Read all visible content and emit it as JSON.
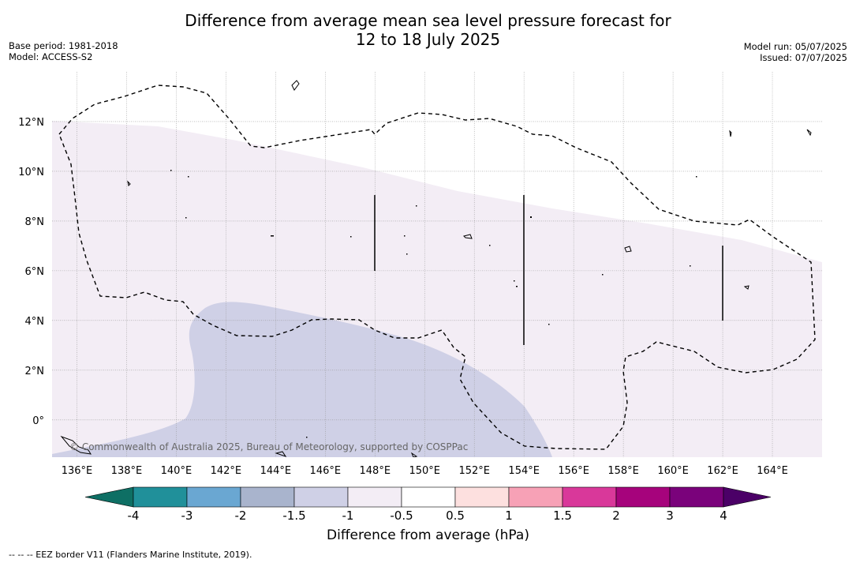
{
  "title_line1": "Difference from average mean sea level pressure forecast for",
  "title_line2": "12 to 18 July 2025",
  "base_period": "Base period: 1981-2018",
  "model": "Model: ACCESS-S2",
  "model_run": "Model run: 05/07/2025",
  "issued": "Issued: 07/07/2025",
  "copyright": "© Commonwealth of Australia 2025, Bureau of Meteorology, supported by COSPPac",
  "footnote": "--  --  -- EEZ border V11 (Flanders Marine Institute, 2019).",
  "colorbar": {
    "title": "Difference from average (hPa)",
    "tick_labels": [
      "-4",
      "-3",
      "-2",
      "-1.5",
      "-1",
      "-0.5",
      "0.5",
      "1",
      "1.5",
      "2",
      "3",
      "4"
    ],
    "colors": [
      "#0e6f64",
      "#20909a",
      "#6aa7d2",
      "#a9b4cd",
      "#cfd0e6",
      "#f3edf5",
      "#ffffff",
      "#fde0df",
      "#f7a1b6",
      "#d9389a",
      "#a6037c",
      "#7a027b",
      "#4b0067"
    ]
  },
  "map": {
    "lon_ticks": [
      "136°E",
      "138°E",
      "140°E",
      "142°E",
      "144°E",
      "146°E",
      "148°E",
      "150°E",
      "152°E",
      "154°E",
      "156°E",
      "158°E",
      "160°E",
      "162°E",
      "164°E"
    ],
    "lat_ticks": [
      "12°N",
      "10°N",
      "8°N",
      "6°N",
      "4°N",
      "2°N",
      "0°"
    ],
    "lon_range": [
      135,
      166
    ],
    "lat_range": [
      -1.5,
      14
    ]
  }
}
